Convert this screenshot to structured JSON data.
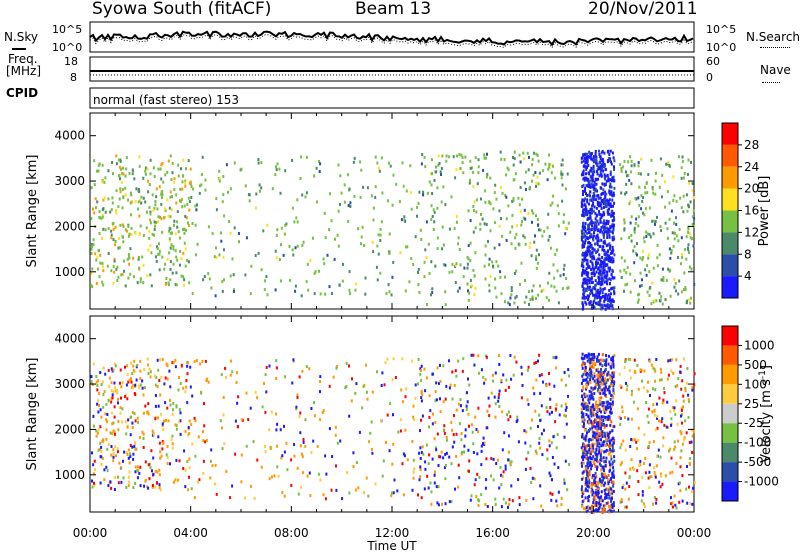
{
  "header": {
    "station": "Syowa South (fitACF)",
    "beam": "Beam 13",
    "date": "20/Nov/2011"
  },
  "noise_panel": {
    "left_label": "N.Sky",
    "right_label": "N.Search",
    "left_ticks": [
      "10^5",
      "10^0"
    ],
    "right_ticks": [
      "10^5",
      "10^0"
    ]
  },
  "freq_panel": {
    "label_line1": "Freq.",
    "label_line2": "[MHz]",
    "left_ticks": [
      "18",
      "8"
    ],
    "right_ticks": [
      "60",
      "0"
    ],
    "right_label": "Nave"
  },
  "cpid_panel": {
    "label": "CPID",
    "text": "normal (fast stereo) 153"
  },
  "chart_data": [
    {
      "type": "heatmap",
      "title": "",
      "xlabel": "Time UT",
      "ylabel": "Slant Range [km]",
      "x_ticks": [
        "00:00",
        "04:00",
        "08:00",
        "12:00",
        "16:00",
        "20:00",
        "00:00"
      ],
      "x_range_hours": [
        0,
        24
      ],
      "y_ticks": [
        1000,
        2000,
        3000,
        4000
      ],
      "ylim": [
        180,
        4500
      ],
      "colorbar": {
        "label": "Power [dB]",
        "ticks": [
          "4",
          "8",
          "12",
          "16",
          "20",
          "24",
          "28"
        ],
        "colors": [
          "#1a1aff",
          "#2a4fa8",
          "#4a8a6a",
          "#76c043",
          "#ffe020",
          "#ff9a00",
          "#ff5a00",
          "#ff0000"
        ]
      },
      "data_density": [
        {
          "x_range": [
            0,
            4
          ],
          "y_range": [
            700,
            3600
          ],
          "density": "medium",
          "dominant": "green/orange"
        },
        {
          "x_range": [
            4,
            13
          ],
          "y_range": [
            500,
            3600
          ],
          "density": "sparse",
          "dominant": "green"
        },
        {
          "x_range": [
            13,
            19
          ],
          "y_range": [
            300,
            3700
          ],
          "density": "medium",
          "dominant": "green"
        },
        {
          "x_range": [
            19.5,
            20.8
          ],
          "y_range": [
            200,
            3700
          ],
          "density": "dense",
          "dominant": "blue"
        },
        {
          "x_range": [
            21,
            24
          ],
          "y_range": [
            300,
            3600
          ],
          "density": "sparse",
          "dominant": "green"
        }
      ]
    },
    {
      "type": "heatmap",
      "title": "",
      "xlabel": "Time UT",
      "ylabel": "Slant Range [km]",
      "x_ticks": [
        "00:00",
        "04:00",
        "08:00",
        "12:00",
        "16:00",
        "20:00",
        "00:00"
      ],
      "x_range_hours": [
        0,
        24
      ],
      "y_ticks": [
        1000,
        2000,
        3000,
        4000
      ],
      "ylim": [
        180,
        4500
      ],
      "colorbar": {
        "label": "Velocity [m s^-1]",
        "ticks": [
          "1000",
          "500",
          "100",
          "25",
          "-25",
          "-100",
          "-500",
          "-1000"
        ],
        "colors": [
          "#1a1aff",
          "#2a4fa8",
          "#4a8a6a",
          "#76c043",
          "#cccccc",
          "#ffcc40",
          "#ff9a00",
          "#ff5a00",
          "#ff0000"
        ]
      },
      "data_density": [
        {
          "x_range": [
            0,
            4
          ],
          "y_range": [
            700,
            3600
          ],
          "density": "medium",
          "dominant": "orange/blue"
        },
        {
          "x_range": [
            4,
            13
          ],
          "y_range": [
            500,
            3600
          ],
          "density": "sparse",
          "dominant": "orange/blue"
        },
        {
          "x_range": [
            13,
            19
          ],
          "y_range": [
            300,
            3700
          ],
          "density": "medium",
          "dominant": "blue/red"
        },
        {
          "x_range": [
            19.5,
            20.8
          ],
          "y_range": [
            200,
            3700
          ],
          "density": "dense",
          "dominant": "blue/orange"
        },
        {
          "x_range": [
            21,
            24
          ],
          "y_range": [
            300,
            3600
          ],
          "density": "sparse",
          "dominant": "orange/blue"
        }
      ]
    }
  ]
}
